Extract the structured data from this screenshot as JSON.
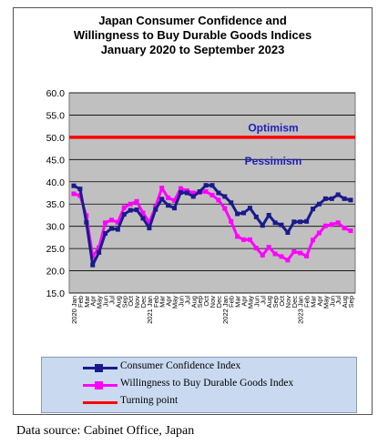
{
  "chart_data": {
    "type": "line",
    "title": [
      "Japan Consumer Confidence and",
      "Willingness to Buy Durable Goods Indices",
      "January 2020 to September  2023"
    ],
    "ylim": [
      15,
      60
    ],
    "yticks": [
      "60.0",
      "55.0",
      "50.0",
      "45.0",
      "40.0",
      "35.0",
      "30.0",
      "25.0",
      "20.0",
      "15.0"
    ],
    "ytick_values": [
      60,
      55,
      50,
      45,
      40,
      35,
      30,
      25,
      20,
      15
    ],
    "grid": true,
    "x_labels": [
      "2020 Jan",
      "Feb",
      "Mar",
      "Apr",
      "May",
      "Jun",
      "Jul",
      "Aug",
      "Sep",
      "Oct",
      "Nov",
      "Dec",
      "2021 Jan",
      "Feb",
      "Mar",
      "Apr",
      "May",
      "Jun",
      "Jul",
      "Aug",
      "Sep",
      "Oct",
      "Nov",
      "Dec",
      "2022 Jan",
      "Feb",
      "Mar",
      "Apr",
      "May",
      "Jun",
      "Jul",
      "Aug",
      "Sep",
      "Oct",
      "Nov",
      "Dec",
      "2023 Jan",
      "Feb",
      "Mar",
      "Apr",
      "May",
      "Jun",
      "Jul",
      "Aug",
      "Sep"
    ],
    "series": [
      {
        "name": "Consumer Confidence Index",
        "color": "#1a1a8c",
        "values": [
          39.1,
          38.4,
          30.9,
          21.3,
          24.1,
          28.4,
          29.5,
          29.3,
          32.7,
          33.6,
          33.7,
          31.8,
          29.6,
          33.8,
          36.1,
          34.7,
          34.1,
          37.6,
          37.5,
          36.7,
          37.8,
          39.2,
          39.2,
          37.5,
          36.7,
          35.3,
          32.8,
          33.0,
          34.1,
          32.1,
          30.2,
          32.5,
          30.8,
          30.3,
          28.6,
          31.0,
          31.0,
          31.1,
          33.9,
          35.0,
          36.2,
          36.2,
          37.1,
          36.2,
          35.9
        ]
      },
      {
        "name": "Willingness to Buy Durable Goods Index",
        "color": "#ff00ff",
        "values": [
          37.3,
          36.9,
          32.4,
          23.2,
          25.2,
          30.8,
          31.4,
          30.9,
          34.2,
          35.0,
          35.6,
          33.0,
          30.9,
          34.4,
          38.6,
          36.4,
          35.8,
          38.5,
          38.0,
          37.5,
          37.6,
          37.8,
          37.0,
          35.9,
          34.0,
          31.1,
          27.7,
          27.0,
          27.0,
          25.1,
          23.5,
          25.3,
          23.8,
          23.2,
          22.4,
          24.3,
          24.0,
          23.3,
          26.9,
          28.5,
          30.1,
          30.4,
          30.8,
          29.6,
          29.0
        ]
      }
    ],
    "turning_point": {
      "name": "Turning point",
      "value": 50,
      "color": "#ff0000"
    },
    "annotations": {
      "optimism": "Optimism",
      "pessimism": "Pessimism"
    },
    "legend_position": "bottom"
  },
  "source_text": "Data source: Cabinet Office, Japan"
}
